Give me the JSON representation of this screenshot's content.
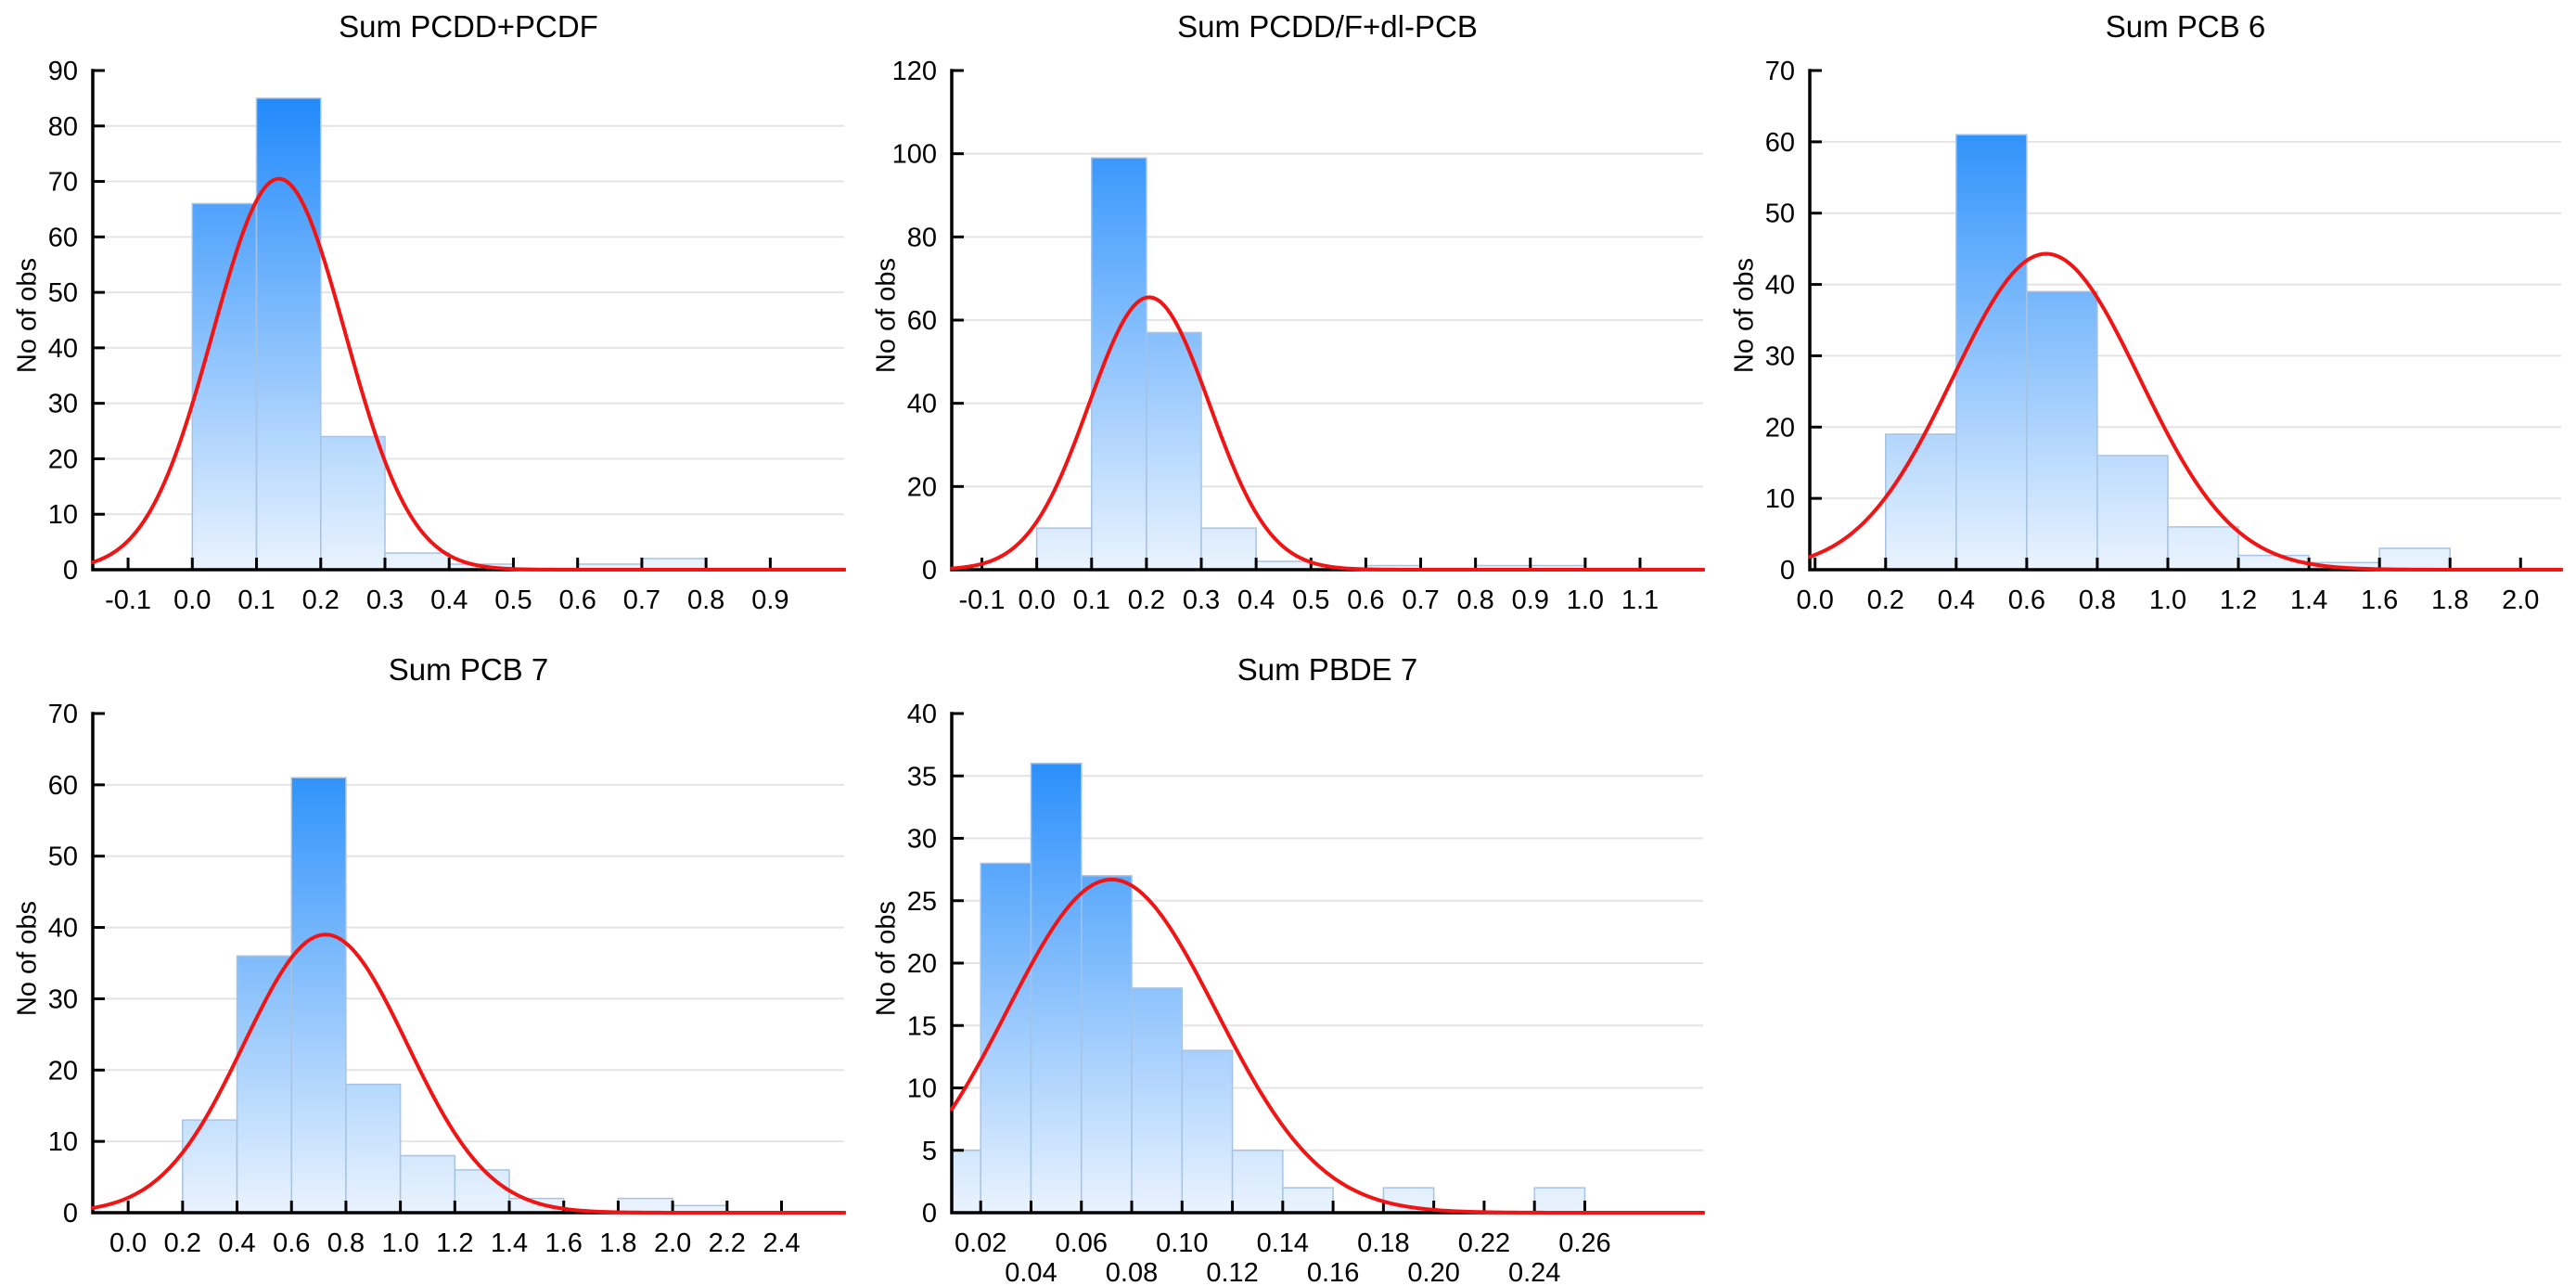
{
  "figure": {
    "background": "#ffffff"
  },
  "colors": {
    "bar_gradient_top": "#1584fb",
    "bar_gradient_bottom": "#edf5fe",
    "bar_border": "#a6c3e3",
    "curve": "#f01414",
    "axis": "#000000",
    "grid": "#e4e4e4",
    "text": "#000000"
  },
  "chart_data": [
    {
      "type": "bar",
      "subtype": "histogram-with-normal-fit",
      "title": "Sum PCDD+PCDF",
      "ylabel": "No of obs",
      "bin_start": 0.0,
      "bin_width": 0.1,
      "counts": [
        66,
        85,
        24,
        3,
        1,
        0,
        1,
        2
      ],
      "bin_edges_note": "bins 0.0-0.1 ... 0.7-0.8",
      "x_ticks": [
        -0.1,
        0.0,
        0.1,
        0.2,
        0.3,
        0.4,
        0.5,
        0.6,
        0.7,
        0.8,
        0.9
      ],
      "x_tick_labels": [
        "-0.1",
        "0.0",
        "0.1",
        "0.2",
        "0.3",
        "0.4",
        "0.5",
        "0.6",
        "0.7",
        "0.8",
        "0.9"
      ],
      "stagger_x_labels": false,
      "y_ticks": [
        0,
        10,
        20,
        30,
        40,
        50,
        60,
        70,
        80,
        90
      ],
      "y_tick_labels": [
        "0",
        "10",
        "20",
        "30",
        "40",
        "50",
        "60",
        "70",
        "80",
        "90"
      ],
      "ylim": [
        0,
        90
      ],
      "xlim": [
        -0.155,
        1.015
      ],
      "grid": "horizontal",
      "normal_curve": {
        "mean": 0.135,
        "sd": 0.103,
        "peak": 70.5
      }
    },
    {
      "type": "bar",
      "subtype": "histogram-with-normal-fit",
      "title": "Sum PCDD/F+dl-PCB",
      "ylabel": "No of obs",
      "bin_start": 0.0,
      "bin_width": 0.1,
      "counts": [
        10,
        99,
        57,
        10,
        2,
        0,
        1,
        0,
        1,
        1
      ],
      "bin_edges_note": "bins 0.0-0.1 ... 0.9-1.0",
      "x_ticks": [
        -0.1,
        0.0,
        0.1,
        0.2,
        0.3,
        0.4,
        0.5,
        0.6,
        0.7,
        0.8,
        0.9,
        1.0,
        1.1
      ],
      "x_tick_labels": [
        "-0.1",
        "0.0",
        "0.1",
        "0.2",
        "0.3",
        "0.4",
        "0.5",
        "0.6",
        "0.7",
        "0.8",
        "0.9",
        "1.0",
        "1.1"
      ],
      "stagger_x_labels": false,
      "y_ticks": [
        0,
        20,
        40,
        60,
        80,
        100,
        120
      ],
      "y_tick_labels": [
        "0",
        "20",
        "40",
        "60",
        "80",
        "100",
        "120"
      ],
      "ylim": [
        0,
        120
      ],
      "xlim": [
        -0.155,
        1.215
      ],
      "grid": "horizontal",
      "normal_curve": {
        "mean": 0.205,
        "sd": 0.11,
        "peak": 65.5
      }
    },
    {
      "type": "bar",
      "subtype": "histogram-with-normal-fit",
      "title": "Sum PCB 6",
      "ylabel": "No of obs",
      "bin_start": 0.2,
      "bin_width": 0.2,
      "counts": [
        19,
        61,
        39,
        16,
        6,
        2,
        1,
        3
      ],
      "bin_edges_note": "bins 0.2-0.4 ... 1.6-1.8",
      "x_ticks": [
        0.0,
        0.2,
        0.4,
        0.6,
        0.8,
        1.0,
        1.2,
        1.4,
        1.6,
        1.8,
        2.0
      ],
      "x_tick_labels": [
        "0.0",
        "0.2",
        "0.4",
        "0.6",
        "0.8",
        "1.0",
        "1.2",
        "1.4",
        "1.6",
        "1.8",
        "2.0"
      ],
      "stagger_x_labels": false,
      "y_ticks": [
        0,
        10,
        20,
        30,
        40,
        50,
        60,
        70
      ],
      "y_tick_labels": [
        "0",
        "10",
        "20",
        "30",
        "40",
        "50",
        "60",
        "70"
      ],
      "ylim": [
        0,
        70
      ],
      "xlim": [
        -0.015,
        2.115
      ],
      "grid": "horizontal",
      "normal_curve": {
        "mean": 0.655,
        "sd": 0.265,
        "peak": 44.3
      }
    },
    {
      "type": "bar",
      "subtype": "histogram-with-normal-fit",
      "title": "Sum PCB 7",
      "ylabel": "No of obs",
      "bin_start": 0.2,
      "bin_width": 0.2,
      "counts": [
        13,
        36,
        61,
        18,
        8,
        6,
        2,
        0,
        2,
        1
      ],
      "bin_edges_note": "bins 0.2-0.4 ... 2.0-2.2",
      "x_ticks": [
        0.0,
        0.2,
        0.4,
        0.6,
        0.8,
        1.0,
        1.2,
        1.4,
        1.6,
        1.8,
        2.0,
        2.2,
        2.4
      ],
      "x_tick_labels": [
        "0.0",
        "0.2",
        "0.4",
        "0.6",
        "0.8",
        "1.0",
        "1.2",
        "1.4",
        "1.6",
        "1.8",
        "2.0",
        "2.2",
        "2.4"
      ],
      "stagger_x_labels": false,
      "y_ticks": [
        0,
        10,
        20,
        30,
        40,
        50,
        60,
        70
      ],
      "y_tick_labels": [
        "0",
        "10",
        "20",
        "30",
        "40",
        "50",
        "60",
        "70"
      ],
      "ylim": [
        0,
        70
      ],
      "xlim": [
        -0.13,
        2.63
      ],
      "grid": "horizontal",
      "normal_curve": {
        "mean": 0.725,
        "sd": 0.3,
        "peak": 39.0
      }
    },
    {
      "type": "bar",
      "subtype": "histogram-with-normal-fit",
      "title": "Sum PBDE 7",
      "ylabel": "No of obs",
      "bin_start": 0.0,
      "bin_width": 0.02,
      "counts": [
        5,
        28,
        36,
        27,
        18,
        13,
        5,
        2,
        0,
        2,
        0,
        0,
        2
      ],
      "bin_edges_note": "bins 0.00-0.02 ... 0.24-0.26",
      "x_ticks": [
        0.02,
        0.04,
        0.06,
        0.08,
        0.1,
        0.12,
        0.14,
        0.16,
        0.18,
        0.2,
        0.22,
        0.24,
        0.26
      ],
      "x_tick_labels": [
        "0.02",
        "0.04",
        "0.06",
        "0.08",
        "0.10",
        "0.12",
        "0.14",
        "0.16",
        "0.18",
        "0.20",
        "0.22",
        "0.24",
        "0.26"
      ],
      "stagger_x_labels": true,
      "y_ticks": [
        0,
        5,
        10,
        15,
        20,
        25,
        30,
        35,
        40
      ],
      "y_tick_labels": [
        "0",
        "5",
        "10",
        "15",
        "20",
        "25",
        "30",
        "35",
        "40"
      ],
      "ylim": [
        0,
        40
      ],
      "xlim": [
        0.0085,
        0.307
      ],
      "grid": "horizontal",
      "normal_curve": {
        "mean": 0.072,
        "sd": 0.0415,
        "peak": 26.7
      }
    }
  ]
}
